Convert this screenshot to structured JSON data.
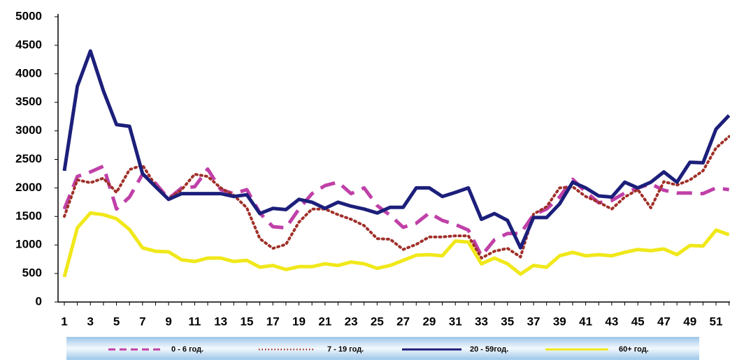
{
  "chart_data": {
    "type": "line",
    "categories": [
      "1",
      null,
      "3",
      null,
      "5",
      null,
      "7",
      null,
      "9",
      null,
      "11",
      null,
      "13",
      null,
      "15",
      null,
      "17",
      null,
      "19",
      null,
      "21",
      null,
      "23",
      null,
      "25",
      null,
      "27",
      null,
      "29",
      null,
      "31",
      null,
      "33",
      null,
      "35",
      null,
      "37",
      null,
      "39",
      null,
      "41",
      null,
      "43",
      null,
      "45",
      null,
      "47",
      null,
      "49",
      null,
      "51",
      null
    ],
    "ylim": [
      0,
      5000
    ],
    "yticks": [
      0,
      500,
      1000,
      1500,
      2000,
      2500,
      3000,
      3500,
      4000,
      4500,
      5000
    ],
    "grid": false,
    "legend": "bottom",
    "series": [
      {
        "name": "0 - 6 год.",
        "color": "#c040a8",
        "style": "dashed",
        "values": [
          1630,
          2200,
          2280,
          2380,
          1630,
          1840,
          2240,
          2080,
          1810,
          2000,
          2020,
          2330,
          1970,
          1900,
          1970,
          1560,
          1320,
          1300,
          1630,
          1900,
          2040,
          2100,
          1900,
          2000,
          1690,
          1520,
          1310,
          1380,
          1560,
          1430,
          1360,
          1260,
          810,
          1090,
          1200,
          1200,
          1530,
          1630,
          1840,
          2150,
          1930,
          1740,
          1780,
          1910,
          2000,
          2070,
          1960,
          1910,
          1910,
          1900,
          2000,
          1970
        ]
      },
      {
        "name": "7 - 19 год.",
        "color": "#a0302a",
        "style": "dotted",
        "values": [
          1500,
          2140,
          2090,
          2170,
          1920,
          2320,
          2400,
          2040,
          1810,
          1970,
          2240,
          2200,
          2000,
          1870,
          1650,
          1110,
          940,
          1010,
          1400,
          1630,
          1630,
          1530,
          1450,
          1340,
          1110,
          1100,
          920,
          1010,
          1140,
          1140,
          1160,
          1160,
          770,
          890,
          940,
          790,
          1540,
          1670,
          2000,
          2020,
          1850,
          1750,
          1630,
          1840,
          1970,
          1650,
          2110,
          2050,
          2140,
          2300,
          2700,
          2900
        ]
      },
      {
        "name": "20 - 59год.",
        "color": "#1c1f7a",
        "style": "solid",
        "values": [
          2300,
          3780,
          4400,
          3700,
          3110,
          3080,
          2250,
          2020,
          1800,
          1900,
          1900,
          1900,
          1900,
          1850,
          1880,
          1550,
          1640,
          1620,
          1800,
          1750,
          1640,
          1750,
          1680,
          1630,
          1560,
          1660,
          1660,
          2000,
          2000,
          1850,
          1920,
          2000,
          1450,
          1550,
          1430,
          950,
          1480,
          1480,
          1720,
          2100,
          2000,
          1860,
          1840,
          2100,
          2000,
          2100,
          2280,
          2100,
          2450,
          2440,
          3030,
          3270
        ]
      },
      {
        "name": "60+ год.",
        "color": "#f0e81a",
        "style": "solid",
        "values": [
          440,
          1300,
          1560,
          1530,
          1460,
          1270,
          950,
          890,
          880,
          740,
          710,
          770,
          770,
          710,
          730,
          610,
          640,
          570,
          620,
          620,
          670,
          640,
          700,
          670,
          590,
          640,
          730,
          820,
          830,
          810,
          1070,
          1050,
          670,
          770,
          670,
          490,
          640,
          610,
          810,
          870,
          810,
          830,
          810,
          870,
          920,
          900,
          930,
          830,
          990,
          980,
          1260,
          1180
        ]
      }
    ]
  }
}
